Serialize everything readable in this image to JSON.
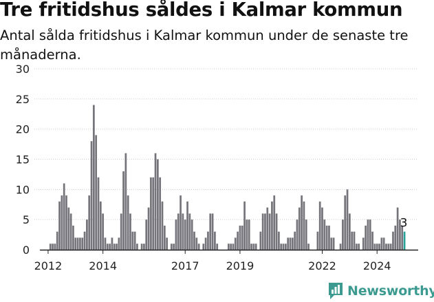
{
  "title": "Tre fritidshus såldes i Kalmar kommun",
  "subtitle": "Antal sålda fritidshus i Kalmar kommun under de senaste tre månaderna.",
  "brand": {
    "name": "Newsworthy",
    "icon": "bar-chart-logo-icon",
    "color": "#3c9a90"
  },
  "colors": {
    "bar": "#76747b",
    "highlight": "#2aa198",
    "grid": "#cccccc",
    "axis": "#222222"
  },
  "chart_data": {
    "type": "bar",
    "title": "Tre fritidshus såldes i Kalmar kommun",
    "subtitle": "Antal sålda fritidshus i Kalmar kommun under de senaste tre månaderna.",
    "xlabel": "",
    "ylabel": "",
    "ylim": [
      0,
      30
    ],
    "yticks": [
      0,
      5,
      10,
      15,
      20,
      25,
      30
    ],
    "xlim": [
      2011.5,
      2025.5
    ],
    "xticks": [
      "2012",
      "2014",
      "2017",
      "2019",
      "2022",
      "2024"
    ],
    "xtick_values": [
      2012,
      2014,
      2017,
      2019,
      2022,
      2024
    ],
    "start": 2012,
    "months_per_bar": 1,
    "grid": true,
    "highlight_label": "3",
    "values": [
      0,
      1,
      1,
      1,
      3,
      8,
      9,
      11,
      9,
      7,
      6,
      4,
      2,
      2,
      2,
      2,
      3,
      5,
      9,
      18,
      24,
      19,
      12,
      8,
      6,
      2,
      1,
      1,
      2,
      1,
      1,
      2,
      6,
      13,
      16,
      9,
      6,
      3,
      3,
      1,
      0,
      1,
      1,
      5,
      7,
      12,
      12,
      16,
      15,
      12,
      8,
      4,
      2,
      0,
      1,
      1,
      5,
      6,
      9,
      6,
      5,
      8,
      6,
      5,
      3,
      2,
      1,
      0,
      1,
      2,
      3,
      6,
      6,
      3,
      1,
      0,
      0,
      0,
      0,
      1,
      1,
      1,
      2,
      3,
      4,
      4,
      8,
      5,
      5,
      1,
      1,
      1,
      0,
      3,
      6,
      6,
      7,
      6,
      8,
      9,
      6,
      3,
      1,
      1,
      1,
      2,
      2,
      2,
      3,
      5,
      7,
      9,
      8,
      5,
      1,
      0,
      0,
      0,
      3,
      8,
      7,
      5,
      4,
      4,
      2,
      2,
      0,
      0,
      1,
      5,
      9,
      10,
      6,
      3,
      3,
      1,
      1,
      0,
      2,
      4,
      5,
      5,
      3,
      1,
      1,
      1,
      2,
      2,
      1,
      1,
      1,
      3,
      4,
      7,
      5,
      4,
      3
    ],
    "series": [
      {
        "name": "Antal sålda fritidshus",
        "color": "#76747b"
      }
    ]
  }
}
